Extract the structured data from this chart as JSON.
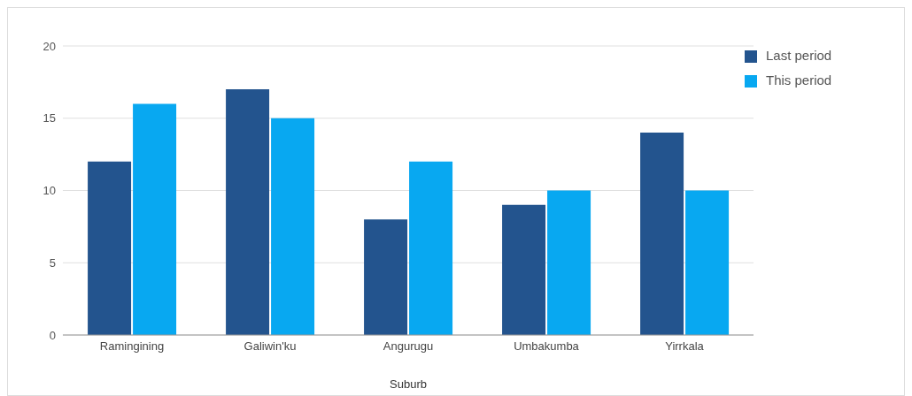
{
  "chart_data": {
    "type": "bar",
    "xlabel": "Suburb",
    "categories": [
      "Ramingining",
      "Galiwin'ku",
      "Angurugu",
      "Umbakumba",
      "Yirrkala"
    ],
    "series": [
      {
        "name": "Last period",
        "color": "#23548e",
        "values": [
          12,
          17,
          8,
          9,
          14
        ]
      },
      {
        "name": "This period",
        "color": "#08a8f1",
        "values": [
          16,
          15,
          12,
          10,
          10
        ]
      }
    ],
    "ylim": [
      0,
      20
    ],
    "yticks": [
      0,
      5,
      10,
      15,
      20
    ],
    "grid": "y",
    "legend": "top right"
  }
}
